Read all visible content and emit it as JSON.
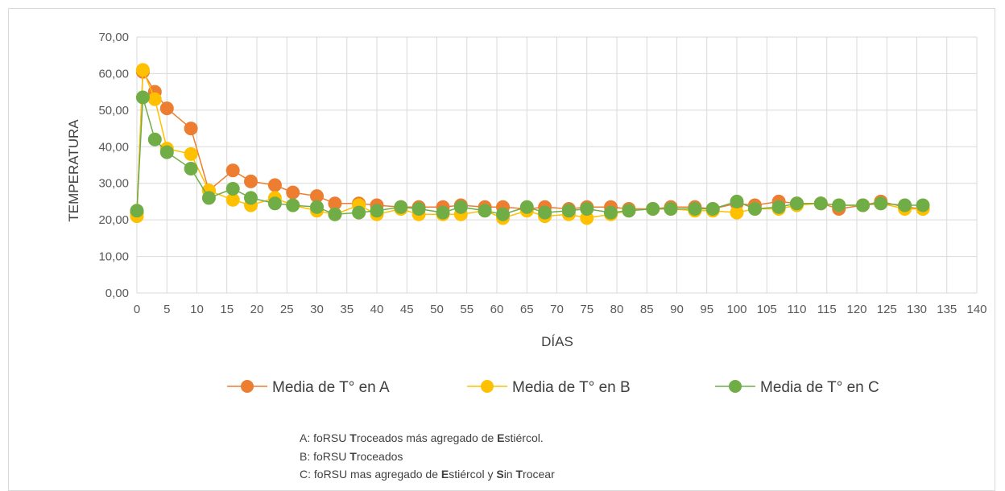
{
  "chart_data": {
    "type": "line",
    "xlabel": "DÍAS",
    "ylabel": "TEMPERATURA",
    "xlim": [
      0,
      140
    ],
    "ylim": [
      0,
      70
    ],
    "x_ticks": [
      "0",
      "5",
      "10",
      "15",
      "20",
      "25",
      "30",
      "35",
      "40",
      "45",
      "50",
      "55",
      "60",
      "65",
      "70",
      "75",
      "80",
      "85",
      "90",
      "95",
      "100",
      "105",
      "110",
      "115",
      "120",
      "125",
      "130",
      "135",
      "140"
    ],
    "y_ticks": [
      "0,00",
      "10,00",
      "20,00",
      "30,00",
      "40,00",
      "50,00",
      "60,00",
      "70,00"
    ],
    "grid": true,
    "legend_position": "bottom",
    "x": [
      0,
      1,
      3,
      5,
      9,
      12,
      16,
      19,
      23,
      26,
      30,
      33,
      37,
      40,
      44,
      47,
      51,
      54,
      58,
      61,
      65,
      68,
      72,
      75,
      79,
      82,
      86,
      89,
      93,
      96,
      100,
      103,
      107,
      110,
      114,
      117,
      121,
      124,
      128,
      131
    ],
    "series": [
      {
        "name": "Media de T° en A",
        "color": "#ED7D31",
        "values": [
          22.0,
          60.5,
          55.0,
          50.5,
          45.0,
          28.0,
          33.5,
          30.5,
          29.5,
          27.5,
          26.5,
          24.5,
          24.5,
          24.0,
          23.5,
          23.5,
          23.5,
          24.0,
          23.5,
          23.5,
          23.0,
          23.5,
          23.0,
          23.5,
          23.5,
          23.0,
          23.0,
          23.5,
          23.5,
          23.0,
          24.5,
          24.0,
          25.0,
          24.5,
          24.5,
          23.0,
          24.0,
          25.0,
          23.5,
          23.0
        ]
      },
      {
        "name": "Media de T° en B",
        "color": "#FFC000",
        "values": [
          21.0,
          61.0,
          53.0,
          39.5,
          38.0,
          28.0,
          25.5,
          24.0,
          26.0,
          24.0,
          22.5,
          21.5,
          24.0,
          21.5,
          23.0,
          21.5,
          21.5,
          21.5,
          22.5,
          20.5,
          22.5,
          21.0,
          21.5,
          20.5,
          21.5,
          22.5,
          23.0,
          23.0,
          22.5,
          22.5,
          22.0,
          23.0,
          23.0,
          24.0,
          24.5,
          24.0,
          24.0,
          24.5,
          23.0,
          23.0
        ]
      },
      {
        "name": "Media de T° en C",
        "color": "#70AD47",
        "values": [
          22.5,
          53.5,
          42.0,
          38.5,
          34.0,
          26.0,
          28.5,
          26.0,
          24.5,
          24.0,
          23.5,
          21.5,
          22.0,
          22.5,
          23.5,
          23.0,
          22.0,
          23.5,
          22.5,
          21.5,
          23.5,
          22.0,
          22.5,
          23.0,
          22.0,
          22.5,
          23.0,
          23.0,
          23.0,
          23.0,
          25.0,
          23.0,
          23.5,
          24.5,
          24.5,
          24.0,
          24.0,
          24.5,
          24.0,
          24.0
        ]
      }
    ]
  },
  "notes": {
    "A": {
      "pre": "A: foRSU ",
      "b1": "T",
      "mid1": "roceados más agregado de ",
      "b2": "E",
      "end": "stiércol."
    },
    "B": {
      "pre": "B: foRSU ",
      "b1": "T",
      "end": "roceados"
    },
    "C": {
      "pre": "C: foRSU mas agregado de ",
      "b1": "E",
      "mid1": "stiércol y ",
      "b2": "S",
      "mid2": "in ",
      "b3": "T",
      "end": "rocear"
    }
  }
}
